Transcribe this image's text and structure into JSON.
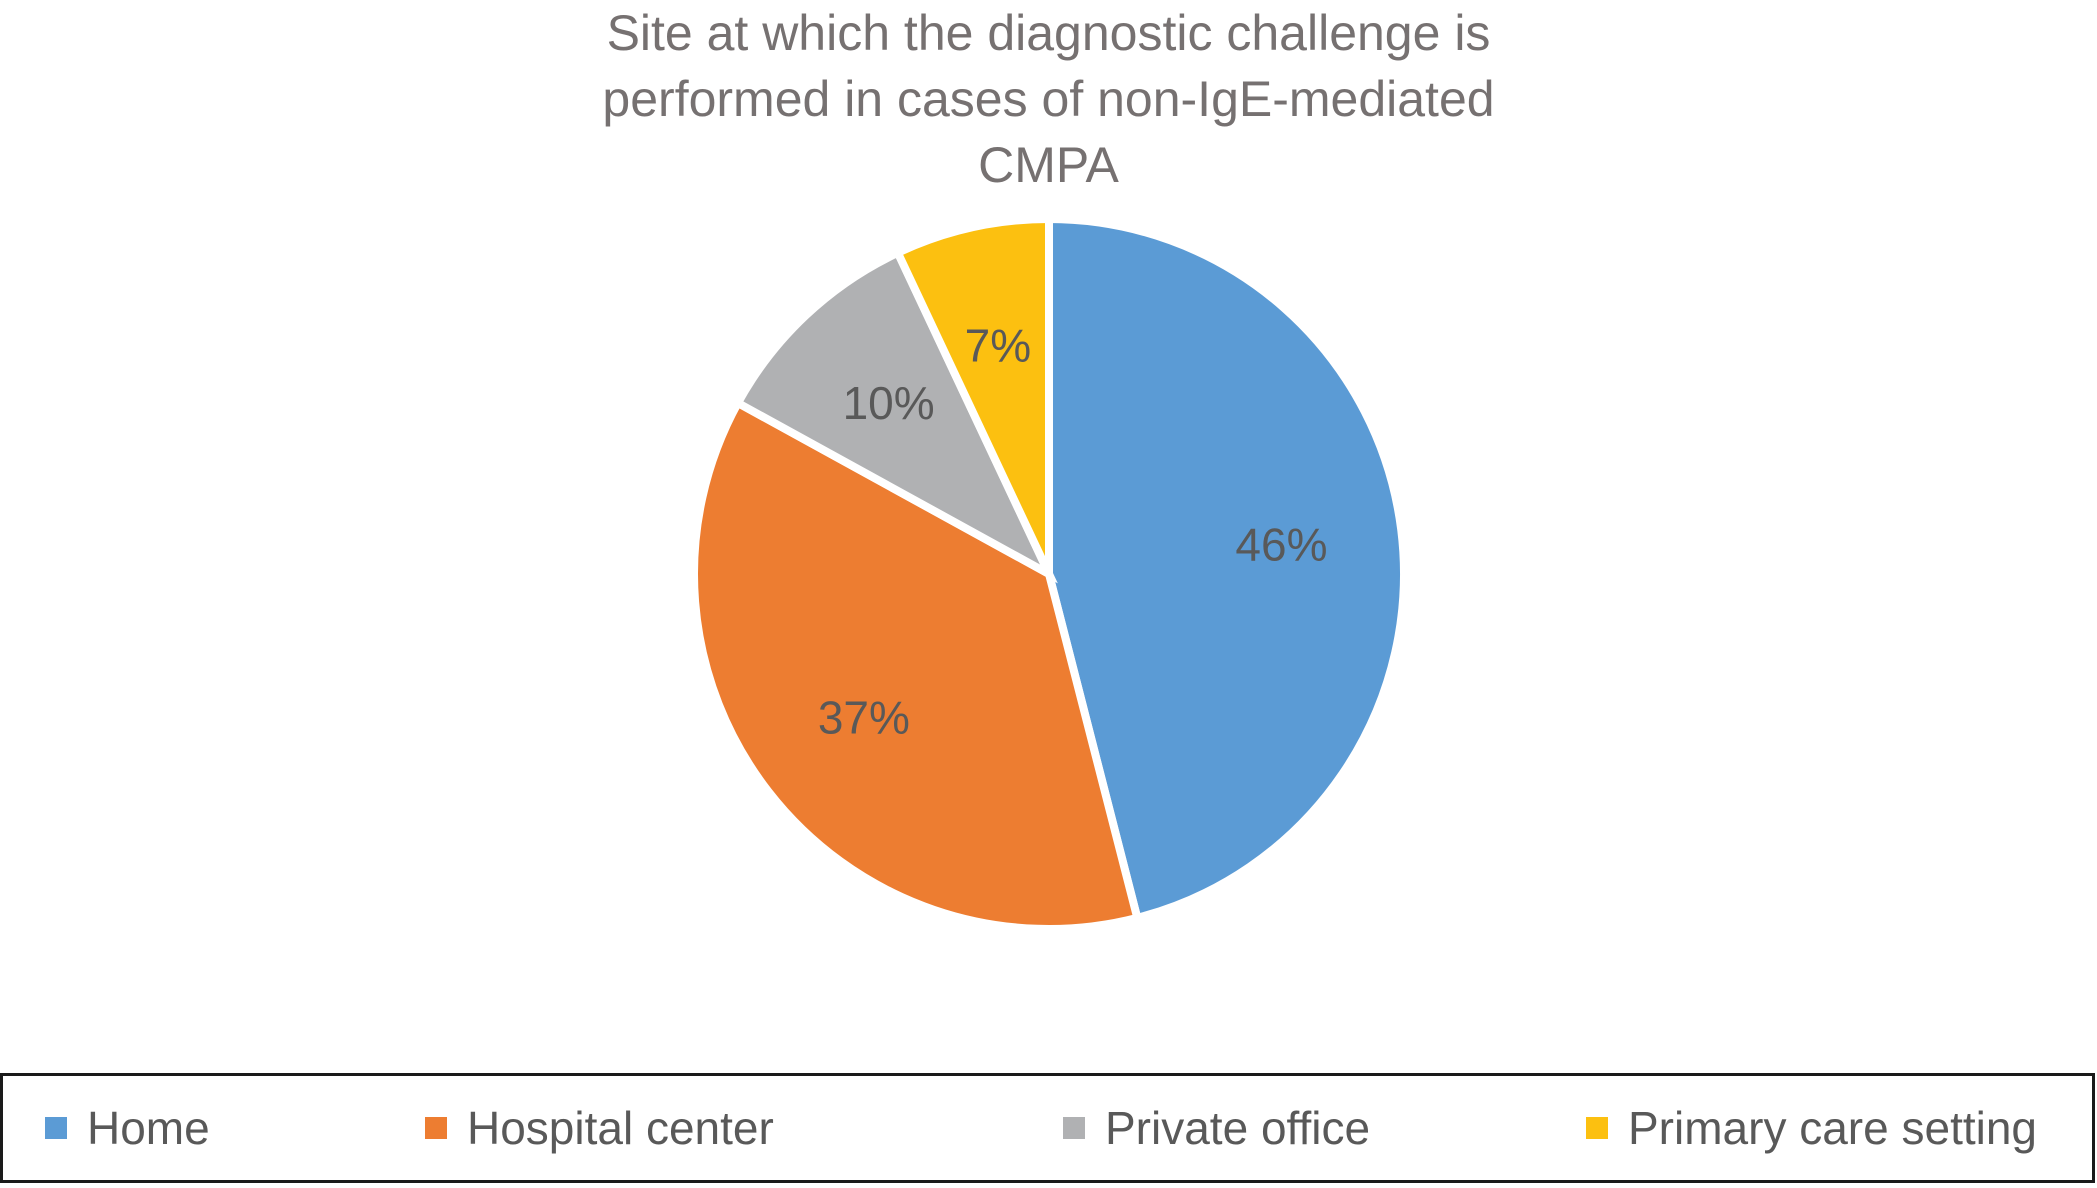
{
  "chart_data": {
    "type": "pie",
    "title_lines": [
      "Site at which the diagnostic challenge is",
      "performed in cases of non-IgE-mediated",
      "CMPA"
    ],
    "categories": [
      "Home",
      "Hospital center",
      "Private office",
      "Primary care setting"
    ],
    "values": [
      46,
      37,
      10,
      7
    ],
    "value_labels": [
      "46%",
      "37%",
      "10%",
      "7%"
    ],
    "colors": [
      "#5B9BD5",
      "#ED7D31",
      "#B0B1B3",
      "#FCC010"
    ],
    "legend_position": "bottom",
    "start_angle": "12 o'clock",
    "direction": "clockwise"
  }
}
